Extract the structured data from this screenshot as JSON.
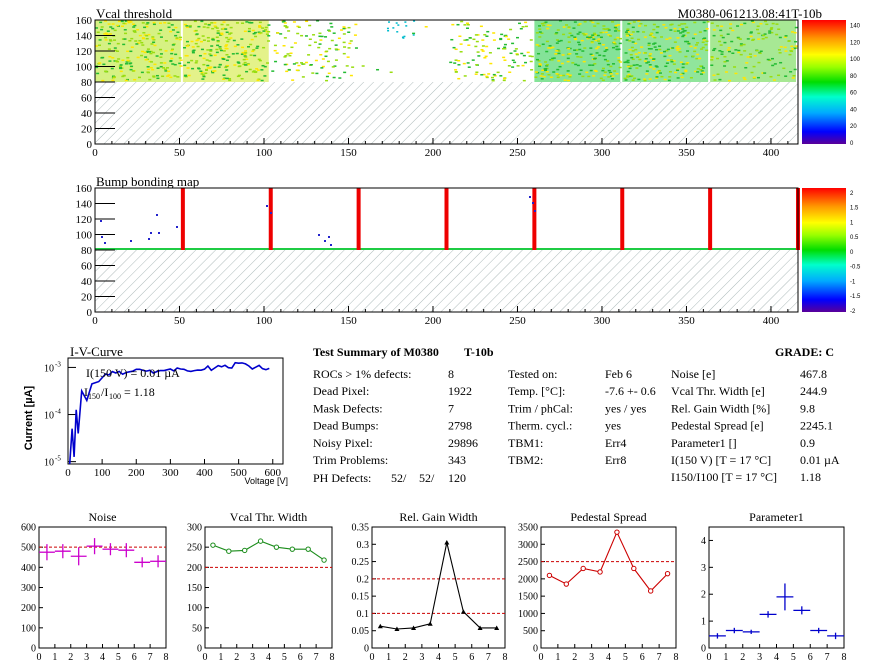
{
  "header": {
    "left_title": "Vcal threshold",
    "right_title": "M0380-061213.08:41T-10b"
  },
  "map1": {
    "title": "Vcal threshold",
    "x_ticks": [
      "0",
      "50",
      "100",
      "150",
      "200",
      "250",
      "300",
      "350",
      "400"
    ],
    "y_ticks": [
      "0",
      "20",
      "40",
      "60",
      "80",
      "100",
      "120",
      "140",
      "160"
    ],
    "scale_ticks": [
      "0",
      "20",
      "40",
      "60",
      "80",
      "100",
      "120",
      "140"
    ]
  },
  "map2": {
    "title": "Bump bonding map",
    "x_ticks": [
      "0",
      "50",
      "100",
      "150",
      "200",
      "250",
      "300",
      "350",
      "400"
    ],
    "y_ticks": [
      "0",
      "20",
      "40",
      "60",
      "80",
      "100",
      "120",
      "140",
      "160"
    ],
    "scale_ticks": [
      "-2",
      "-1.5",
      "-1",
      "-0.5",
      "0",
      "0.5",
      "1",
      "1.5",
      "2"
    ]
  },
  "iv": {
    "title": "I-V-Curve",
    "ylabel": "Current [µA]",
    "xlabel": "Voltage [V]",
    "x_ticks": [
      "0",
      "100",
      "200",
      "300",
      "400",
      "500",
      "600"
    ],
    "y_ticks": [
      "10",
      "10",
      "10"
    ],
    "y_exps": [
      "-5",
      "-4",
      "-3"
    ],
    "legend_line1": "I(150 V) = 0.01 µA",
    "legend_line2_label": "I",
    "legend_sub1": "150",
    "legend_sep": "/I",
    "legend_sub2": "100",
    "legend_value": "=  1.18"
  },
  "summary": {
    "title": "Test Summary of M0380",
    "tag": "T-10b",
    "grade": "GRADE:  C",
    "col1": [
      {
        "label": "ROCs > 1% defects:",
        "value": "8"
      },
      {
        "label": "Dead Pixel:",
        "value": "1922"
      },
      {
        "label": "Mask Defects:",
        "value": "7"
      },
      {
        "label": "Dead Bumps:",
        "value": "2798"
      },
      {
        "label": "Noisy Pixel:",
        "value": "29896"
      },
      {
        "label": "Trim Problems:",
        "value": "343"
      }
    ],
    "ph_label": "PH Defects:",
    "ph_values": [
      "52/",
      "52/",
      "120"
    ],
    "ph_colors": [
      "#000000",
      "#d10000",
      "#0000cc"
    ],
    "col2": [
      {
        "label": "Tested on:",
        "value": "Feb 6"
      },
      {
        "label": "Temp. [°C]:",
        "value": "-7.6 +- 0.6"
      },
      {
        "label": "Trim / phCal:",
        "value": "yes / yes"
      },
      {
        "label": "Therm. cycl.:",
        "value": "yes"
      },
      {
        "label": "TBM1:",
        "value": "Err4"
      },
      {
        "label": "TBM2:",
        "value": "Err8"
      }
    ],
    "col3": [
      {
        "label": "Noise [e]",
        "value": "467.8"
      },
      {
        "label": "Vcal Thr. Width [e]",
        "value": "244.9"
      },
      {
        "label": "Rel. Gain Width [%]",
        "value": "9.8"
      },
      {
        "label": "Pedestal Spread [e]",
        "value": "2245.1"
      },
      {
        "label": "Parameter1 []",
        "value": "0.9"
      },
      {
        "label": "I(150 V) [T = 17 °C]",
        "value": "0.01 µA"
      },
      {
        "label": "I150/I100  [T = 17 °C]",
        "value": "1.18"
      }
    ]
  },
  "chart_data": [
    {
      "type": "scatter",
      "title": "Noise",
      "x": [
        0.5,
        1.5,
        2.5,
        3.5,
        4.5,
        5.5,
        6.5,
        7.5
      ],
      "y": [
        475,
        480,
        455,
        505,
        490,
        485,
        425,
        430
      ],
      "yerr": [
        40,
        35,
        45,
        40,
        30,
        35,
        25,
        30
      ],
      "ylim": [
        0,
        600
      ],
      "xlim": [
        0,
        8
      ],
      "y_ticks": [
        0,
        100,
        200,
        300,
        400,
        500,
        600
      ],
      "cut": 500,
      "color": "#cc00cc",
      "marker": "cross",
      "connect": false
    },
    {
      "type": "line",
      "title": "Vcal Thr. Width",
      "x": [
        0.5,
        1.5,
        2.5,
        3.5,
        4.5,
        5.5,
        6.5,
        7.5
      ],
      "y": [
        255,
        240,
        242,
        265,
        250,
        245,
        245,
        218
      ],
      "ylim": [
        0,
        300
      ],
      "xlim": [
        0,
        8
      ],
      "y_ticks": [
        0,
        50,
        100,
        150,
        200,
        250,
        300
      ],
      "cut": 200,
      "color": "#1a8c1a",
      "marker": "circle",
      "connect": true
    },
    {
      "type": "line",
      "title": "Rel. Gain Width",
      "x": [
        0.5,
        1.5,
        2.5,
        3.5,
        4.5,
        5.5,
        6.5,
        7.5
      ],
      "y": [
        0.063,
        0.055,
        0.058,
        0.07,
        0.305,
        0.105,
        0.058,
        0.058
      ],
      "ylim": [
        0,
        0.35
      ],
      "xlim": [
        0,
        8
      ],
      "y_ticks": [
        0,
        0.05,
        0.1,
        0.15,
        0.2,
        0.25,
        0.3,
        0.35
      ],
      "y_tick_labels": [
        "0",
        "0.05",
        "0.1",
        "0.15",
        "0.2",
        "0.25",
        "0.3",
        "0.35"
      ],
      "cut": [
        0.1,
        0.2
      ],
      "color": "#000000",
      "marker": "triangle",
      "connect": true
    },
    {
      "type": "line",
      "title": "Pedestal Spread",
      "x": [
        0.5,
        1.5,
        2.5,
        3.5,
        4.5,
        5.5,
        6.5,
        7.5
      ],
      "y": [
        2100,
        1850,
        2300,
        2200,
        3350,
        2300,
        1650,
        2150
      ],
      "ylim": [
        0,
        3500
      ],
      "xlim": [
        0,
        8
      ],
      "y_ticks": [
        0,
        500,
        1000,
        1500,
        2000,
        2500,
        3000,
        3500
      ],
      "cut": 2500,
      "color": "#cc0000",
      "marker": "circle",
      "connect": true
    },
    {
      "type": "scatter",
      "title": "Parameter1",
      "x": [
        0.5,
        1.5,
        2.5,
        3.5,
        4.5,
        5.5,
        6.5,
        7.5
      ],
      "y": [
        0.45,
        0.65,
        0.6,
        1.25,
        1.9,
        1.4,
        0.65,
        0.45
      ],
      "yerr": [
        0.1,
        0.1,
        0.08,
        0.12,
        0.5,
        0.15,
        0.1,
        0.12
      ],
      "ylim": [
        0,
        4.5
      ],
      "xlim": [
        0,
        8
      ],
      "y_ticks": [
        0,
        1,
        2,
        3,
        4
      ],
      "cut": null,
      "color": "#0000cc",
      "marker": "cross",
      "connect": false
    }
  ]
}
